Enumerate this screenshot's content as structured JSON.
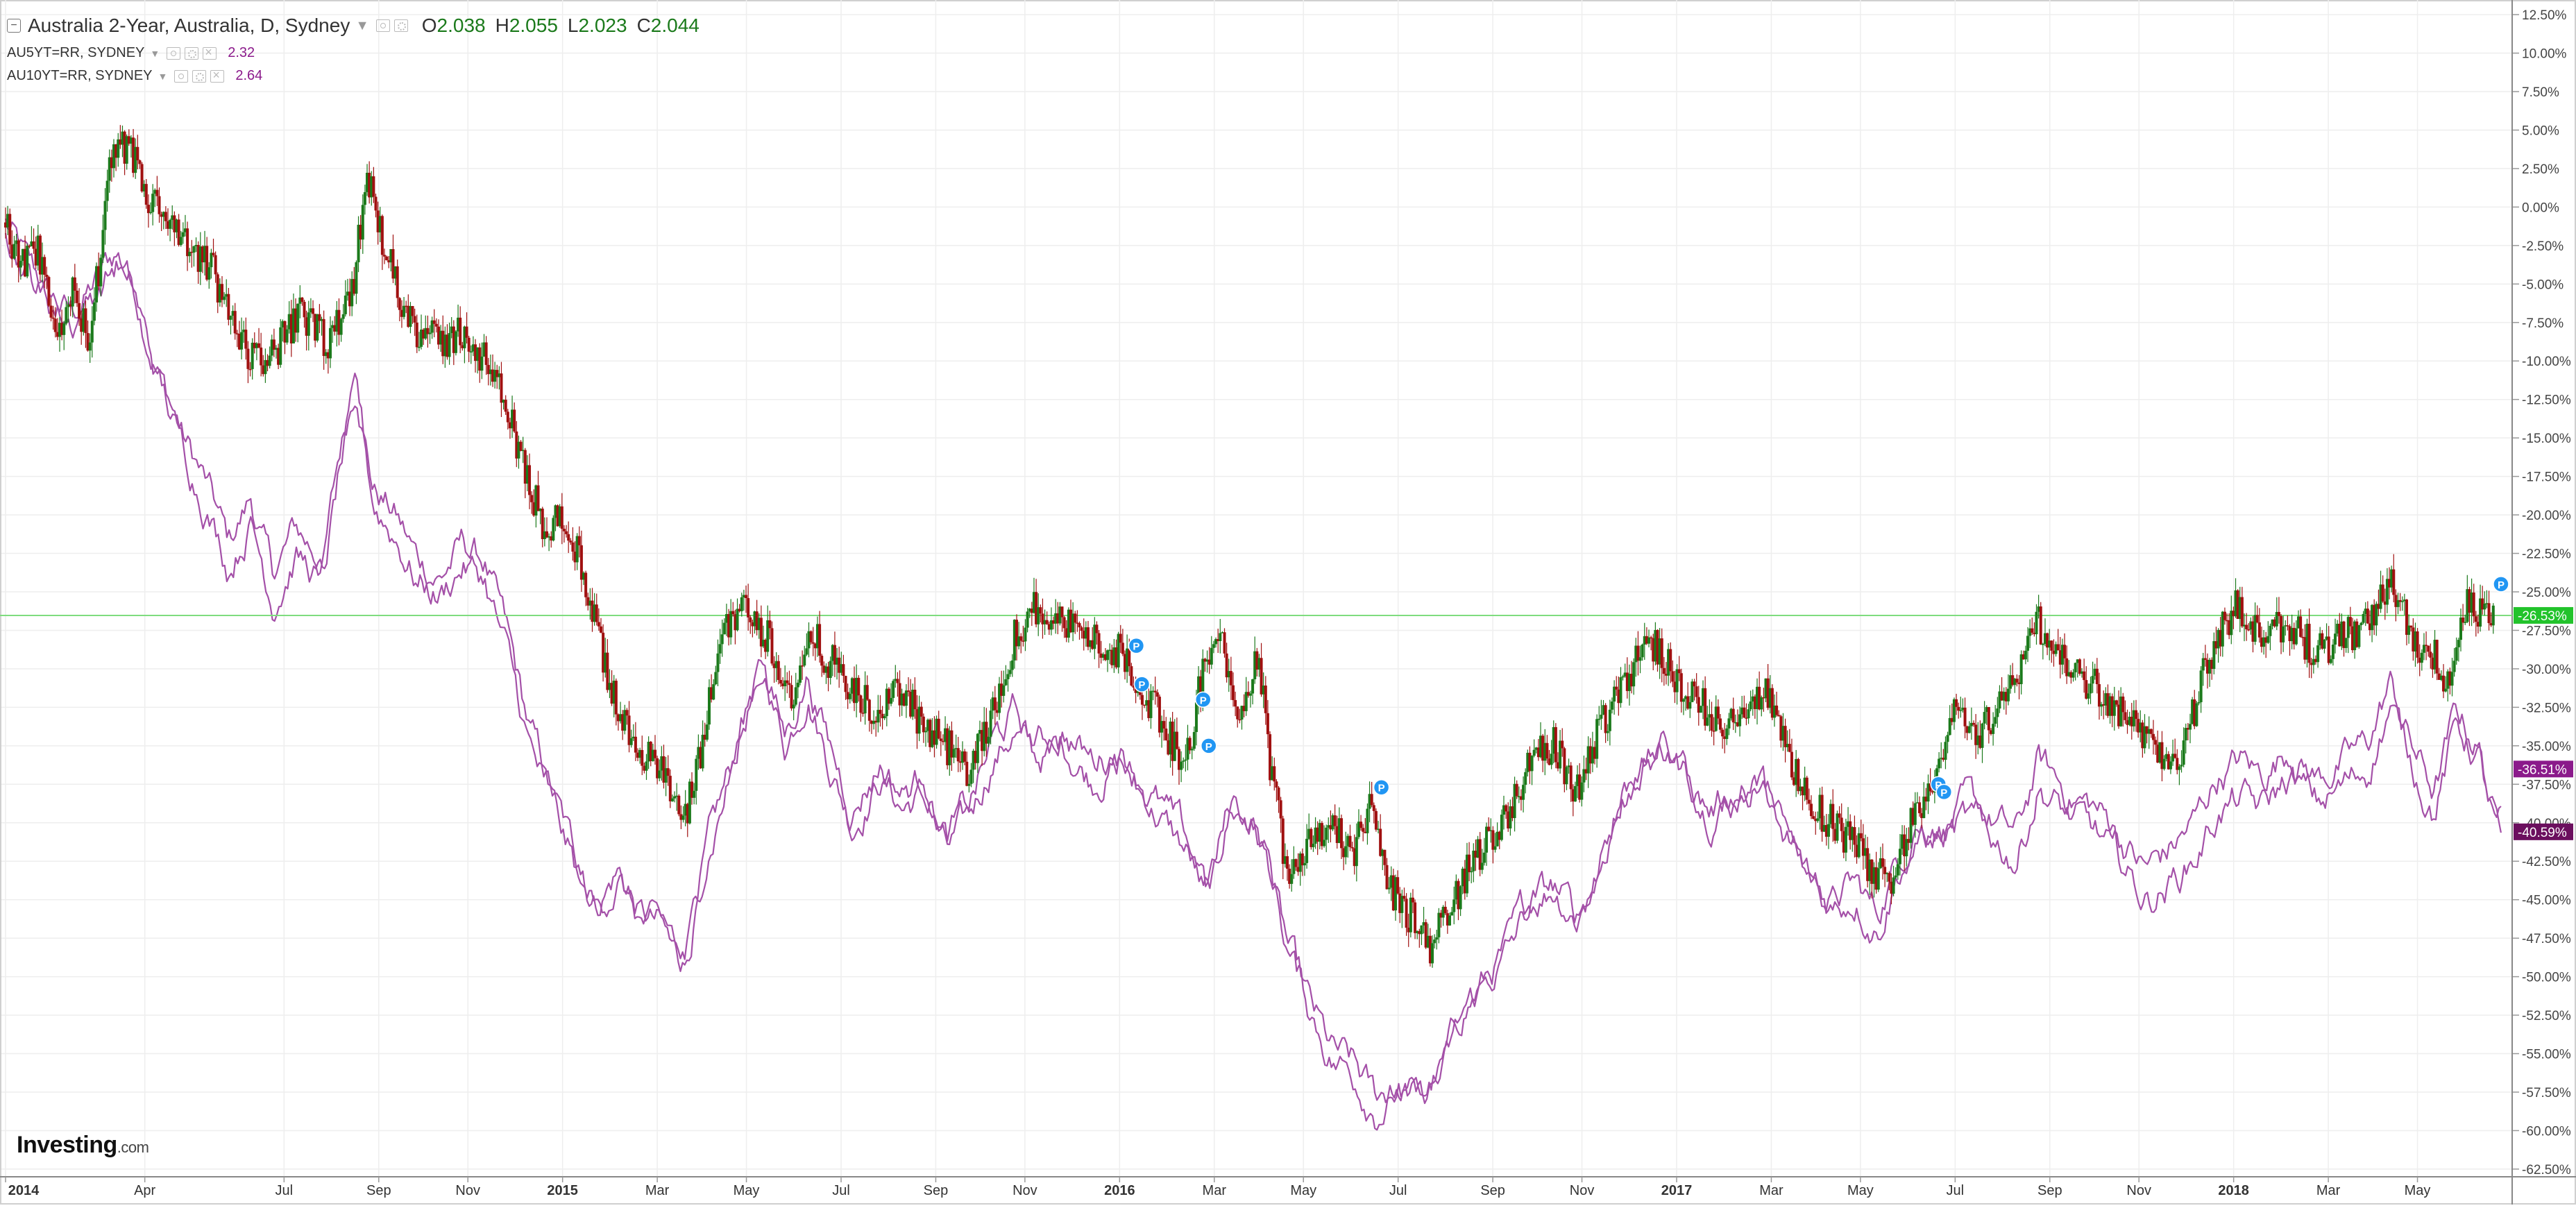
{
  "legend": {
    "main": {
      "title": "Australia 2-Year, Australia, D, Sydney",
      "o_label": "O",
      "o_value": "2.038",
      "h_label": "H",
      "h_value": "2.055",
      "l_label": "L",
      "l_value": "2.023",
      "c_label": "C",
      "c_value": "2.044"
    },
    "series": [
      {
        "name": "AU5YT=RR, SYDNEY",
        "value": "2.32"
      },
      {
        "name": "AU10YT=RR, SYDNEY",
        "value": "2.64"
      }
    ]
  },
  "brand": {
    "name": "Investing",
    "suffix": ".com"
  },
  "colors": {
    "up": "#1b7a1b",
    "down": "#a01010",
    "compare": "#a450a8",
    "hline": "#7fdc7f",
    "grid": "#eeeeee",
    "badge_green": "#22c32b",
    "badge_purple": "#8b1a8b",
    "note": "#2196f3"
  },
  "icons": [
    "collapse-icon",
    "chevron-down-icon",
    "eye-icon",
    "gear-icon",
    "close-icon",
    "note-marker-icon"
  ],
  "chart_data": {
    "type": "candlestick",
    "x_labels": [
      "2014",
      "Apr",
      "Jul",
      "Sep",
      "Nov",
      "2015",
      "Mar",
      "May",
      "Jul",
      "Sep",
      "Nov",
      "2016",
      "Mar",
      "May",
      "Jul",
      "Sep",
      "Nov",
      "2017",
      "Mar",
      "May",
      "Jul",
      "Sep",
      "Nov",
      "2018",
      "Mar",
      "May"
    ],
    "x_label_bold": [
      "2014",
      "2015",
      "2016",
      "2017",
      "2018"
    ],
    "x_range": [
      2014.0,
      2018.5
    ],
    "x_ticks": [
      2014.0,
      2014.25,
      2014.5,
      2014.67,
      2014.83,
      2015.0,
      2015.17,
      2015.33,
      2015.5,
      2015.67,
      2015.83,
      2016.0,
      2016.17,
      2016.33,
      2016.5,
      2016.67,
      2016.83,
      2017.0,
      2017.17,
      2017.33,
      2017.5,
      2017.67,
      2017.83,
      2018.0,
      2018.17,
      2018.33
    ],
    "y_unit": "%",
    "y_range": [
      -63,
      13
    ],
    "y_ticks": [
      12.5,
      10,
      7.5,
      5,
      2.5,
      0,
      -2.5,
      -5,
      -7.5,
      -10,
      -12.5,
      -15,
      -17.5,
      -20,
      -22.5,
      -25,
      -27.5,
      -30,
      -32.5,
      -35,
      -37.5,
      -40,
      -42.5,
      -45,
      -47.5,
      -50,
      -52.5,
      -55,
      -57.5,
      -60,
      -62.5
    ],
    "y_tick_labels": [
      "12.50%",
      "10.00%",
      "7.50%",
      "5.00%",
      "2.50%",
      "0.00%",
      "-2.50%",
      "-5.00%",
      "-7.50%",
      "-10.00%",
      "-12.50%",
      "-15.00%",
      "-17.50%",
      "-20.00%",
      "-22.50%",
      "-25.00%",
      "-27.50%",
      "-30.00%",
      "-32.50%",
      "-35.00%",
      "-37.50%",
      "-40.00%",
      "-42.50%",
      "-45.00%",
      "-47.50%",
      "-50.00%",
      "-52.50%",
      "-55.00%",
      "-57.50%",
      "-60.00%",
      "-62.50%"
    ],
    "main_series_path": [
      [
        2014.0,
        -1
      ],
      [
        2014.03,
        -4
      ],
      [
        2014.06,
        -3
      ],
      [
        2014.09,
        -9
      ],
      [
        2014.12,
        -5
      ],
      [
        2014.15,
        -9
      ],
      [
        2014.19,
        3
      ],
      [
        2014.22,
        4
      ],
      [
        2014.25,
        1
      ],
      [
        2014.29,
        -1
      ],
      [
        2014.33,
        -3
      ],
      [
        2014.37,
        -4
      ],
      [
        2014.41,
        -8
      ],
      [
        2014.45,
        -10
      ],
      [
        2014.49,
        -9
      ],
      [
        2014.53,
        -7
      ],
      [
        2014.58,
        -9
      ],
      [
        2014.62,
        -6
      ],
      [
        2014.65,
        2
      ],
      [
        2014.67,
        -1
      ],
      [
        2014.7,
        -5
      ],
      [
        2014.74,
        -8
      ],
      [
        2014.78,
        -9
      ],
      [
        2014.82,
        -8
      ],
      [
        2014.86,
        -10
      ],
      [
        2014.9,
        -13
      ],
      [
        2014.93,
        -17
      ],
      [
        2014.97,
        -21
      ],
      [
        2015.0,
        -20
      ],
      [
        2015.04,
        -24
      ],
      [
        2015.07,
        -29
      ],
      [
        2015.1,
        -33
      ],
      [
        2015.14,
        -35
      ],
      [
        2015.18,
        -37
      ],
      [
        2015.22,
        -40
      ],
      [
        2015.25,
        -35
      ],
      [
        2015.29,
        -27
      ],
      [
        2015.33,
        -26
      ],
      [
        2015.37,
        -28
      ],
      [
        2015.41,
        -32
      ],
      [
        2015.45,
        -28
      ],
      [
        2015.49,
        -30
      ],
      [
        2015.53,
        -32
      ],
      [
        2015.57,
        -33
      ],
      [
        2015.61,
        -31
      ],
      [
        2015.65,
        -34
      ],
      [
        2015.69,
        -35
      ],
      [
        2015.73,
        -37
      ],
      [
        2015.77,
        -33
      ],
      [
        2015.81,
        -28
      ],
      [
        2015.85,
        -26
      ],
      [
        2015.9,
        -27
      ],
      [
        2015.95,
        -28
      ],
      [
        2016.0,
        -29
      ],
      [
        2016.04,
        -31
      ],
      [
        2016.08,
        -34
      ],
      [
        2016.12,
        -36
      ],
      [
        2016.15,
        -30
      ],
      [
        2016.18,
        -28
      ],
      [
        2016.21,
        -33
      ],
      [
        2016.25,
        -29
      ],
      [
        2016.27,
        -36
      ],
      [
        2016.3,
        -43
      ],
      [
        2016.34,
        -41
      ],
      [
        2016.38,
        -40
      ],
      [
        2016.42,
        -42
      ],
      [
        2016.45,
        -39
      ],
      [
        2016.48,
        -44
      ],
      [
        2016.52,
        -46
      ],
      [
        2016.56,
        -48
      ],
      [
        2016.6,
        -45
      ],
      [
        2016.64,
        -42
      ],
      [
        2016.67,
        -41
      ],
      [
        2016.7,
        -39
      ],
      [
        2016.74,
        -36
      ],
      [
        2016.78,
        -35
      ],
      [
        2016.82,
        -38
      ],
      [
        2016.86,
        -34
      ],
      [
        2016.9,
        -31
      ],
      [
        2016.95,
        -28
      ],
      [
        2016.99,
        -30
      ],
      [
        2017.03,
        -32
      ],
      [
        2017.07,
        -33
      ],
      [
        2017.11,
        -34
      ],
      [
        2017.16,
        -31
      ],
      [
        2017.2,
        -36
      ],
      [
        2017.24,
        -39
      ],
      [
        2017.28,
        -40
      ],
      [
        2017.33,
        -42
      ],
      [
        2017.38,
        -44
      ],
      [
        2017.42,
        -40
      ],
      [
        2017.46,
        -37
      ],
      [
        2017.5,
        -33
      ],
      [
        2017.55,
        -34
      ],
      [
        2017.6,
        -31
      ],
      [
        2017.65,
        -27
      ],
      [
        2017.7,
        -30
      ],
      [
        2017.75,
        -31
      ],
      [
        2017.8,
        -33
      ],
      [
        2017.85,
        -35
      ],
      [
        2017.9,
        -36
      ],
      [
        2017.95,
        -30
      ],
      [
        2018.0,
        -26
      ],
      [
        2018.05,
        -28
      ],
      [
        2018.1,
        -27
      ],
      [
        2018.15,
        -29
      ],
      [
        2018.2,
        -28
      ],
      [
        2018.25,
        -27
      ],
      [
        2018.28,
        -24
      ],
      [
        2018.32,
        -28
      ],
      [
        2018.36,
        -29
      ],
      [
        2018.38,
        -31
      ],
      [
        2018.42,
        -26
      ],
      [
        2018.46,
        -27
      ]
    ],
    "compare_series_1_path": [
      [
        2014.0,
        -1
      ],
      [
        2014.04,
        -4
      ],
      [
        2014.08,
        -6
      ],
      [
        2014.12,
        -7
      ],
      [
        2014.16,
        -5
      ],
      [
        2014.2,
        -3
      ],
      [
        2014.23,
        -5
      ],
      [
        2014.27,
        -10
      ],
      [
        2014.32,
        -15
      ],
      [
        2014.36,
        -18
      ],
      [
        2014.4,
        -22
      ],
      [
        2014.44,
        -19
      ],
      [
        2014.48,
        -24
      ],
      [
        2014.52,
        -21
      ],
      [
        2014.57,
        -23
      ],
      [
        2014.6,
        -16
      ],
      [
        2014.63,
        -11
      ],
      [
        2014.66,
        -18
      ],
      [
        2014.7,
        -20
      ],
      [
        2014.74,
        -23
      ],
      [
        2014.78,
        -24
      ],
      [
        2014.82,
        -22
      ],
      [
        2014.86,
        -23
      ],
      [
        2014.9,
        -28
      ],
      [
        2014.94,
        -34
      ],
      [
        2014.98,
        -38
      ],
      [
        2015.02,
        -42
      ],
      [
        2015.06,
        -45
      ],
      [
        2015.1,
        -43
      ],
      [
        2015.14,
        -46
      ],
      [
        2015.18,
        -47
      ],
      [
        2015.22,
        -49
      ],
      [
        2015.26,
        -42
      ],
      [
        2015.3,
        -37
      ],
      [
        2015.33,
        -33
      ],
      [
        2015.36,
        -30
      ],
      [
        2015.4,
        -35
      ],
      [
        2015.44,
        -31
      ],
      [
        2015.48,
        -36
      ],
      [
        2015.52,
        -40
      ],
      [
        2015.57,
        -37
      ],
      [
        2015.61,
        -39
      ],
      [
        2015.65,
        -38
      ],
      [
        2015.69,
        -42
      ],
      [
        2015.73,
        -40
      ],
      [
        2015.77,
        -36
      ],
      [
        2015.81,
        -34
      ],
      [
        2015.85,
        -36
      ],
      [
        2015.9,
        -35
      ],
      [
        2015.95,
        -37
      ],
      [
        2016.0,
        -36
      ],
      [
        2016.04,
        -38
      ],
      [
        2016.08,
        -40
      ],
      [
        2016.12,
        -42
      ],
      [
        2016.16,
        -45
      ],
      [
        2016.2,
        -39
      ],
      [
        2016.24,
        -40
      ],
      [
        2016.27,
        -43
      ],
      [
        2016.3,
        -48
      ],
      [
        2016.34,
        -52
      ],
      [
        2016.38,
        -55
      ],
      [
        2016.42,
        -56
      ],
      [
        2016.46,
        -58
      ],
      [
        2016.5,
        -57
      ],
      [
        2016.54,
        -58
      ],
      [
        2016.58,
        -56
      ],
      [
        2016.62,
        -52
      ],
      [
        2016.66,
        -50
      ],
      [
        2016.7,
        -48
      ],
      [
        2016.74,
        -45
      ],
      [
        2016.78,
        -44
      ],
      [
        2016.82,
        -46
      ],
      [
        2016.86,
        -43
      ],
      [
        2016.9,
        -38
      ],
      [
        2016.94,
        -36
      ],
      [
        2016.98,
        -35
      ],
      [
        2017.02,
        -37
      ],
      [
        2017.06,
        -39
      ],
      [
        2017.1,
        -38
      ],
      [
        2017.15,
        -37
      ],
      [
        2017.19,
        -40
      ],
      [
        2017.23,
        -43
      ],
      [
        2017.28,
        -45
      ],
      [
        2017.32,
        -44
      ],
      [
        2017.36,
        -46
      ],
      [
        2017.4,
        -42
      ],
      [
        2017.44,
        -40
      ],
      [
        2017.48,
        -40
      ],
      [
        2017.52,
        -39
      ],
      [
        2017.57,
        -40
      ],
      [
        2017.61,
        -41
      ],
      [
        2017.65,
        -36
      ],
      [
        2017.7,
        -38
      ],
      [
        2017.75,
        -39
      ],
      [
        2017.8,
        -41
      ],
      [
        2017.84,
        -43
      ],
      [
        2017.88,
        -42
      ],
      [
        2017.93,
        -40
      ],
      [
        2017.97,
        -37
      ],
      [
        2018.01,
        -36
      ],
      [
        2018.05,
        -37
      ],
      [
        2018.1,
        -35
      ],
      [
        2018.15,
        -37
      ],
      [
        2018.2,
        -36
      ],
      [
        2018.24,
        -35
      ],
      [
        2018.28,
        -31
      ],
      [
        2018.32,
        -35
      ],
      [
        2018.36,
        -38
      ],
      [
        2018.4,
        -33
      ],
      [
        2018.44,
        -35
      ],
      [
        2018.47,
        -40
      ]
    ],
    "compare_series_2_offset": [
      [
        2014.0,
        0
      ],
      [
        2014.5,
        -1.5
      ],
      [
        2015.0,
        -1
      ],
      [
        2015.5,
        1
      ],
      [
        2016.0,
        1
      ],
      [
        2016.5,
        -0.5
      ],
      [
        2017.0,
        0
      ],
      [
        2017.5,
        -1
      ],
      [
        2018.0,
        -2.5
      ],
      [
        2018.48,
        -0.5
      ]
    ],
    "horizontal_line": -26.53,
    "price_badges": [
      {
        "label": "-26.53%",
        "value": -26.53,
        "color": "green"
      },
      {
        "label": "-36.51%",
        "value": -36.51,
        "color": "purple"
      },
      {
        "label": "-40.59%",
        "value": -40.59,
        "color": "darkpurple"
      }
    ],
    "event_markers": [
      {
        "label": "P",
        "x": 2016.03,
        "y": -28.5
      },
      {
        "label": "P",
        "x": 2016.04,
        "y": -31
      },
      {
        "label": "P",
        "x": 2016.15,
        "y": -32
      },
      {
        "label": "P",
        "x": 2016.16,
        "y": -35
      },
      {
        "label": "P",
        "x": 2016.47,
        "y": -37.7
      },
      {
        "label": "P",
        "x": 2017.47,
        "y": -37.5
      },
      {
        "label": "P",
        "x": 2017.48,
        "y": -38
      },
      {
        "label": "P",
        "x": 2018.48,
        "y": -24.5
      }
    ]
  }
}
